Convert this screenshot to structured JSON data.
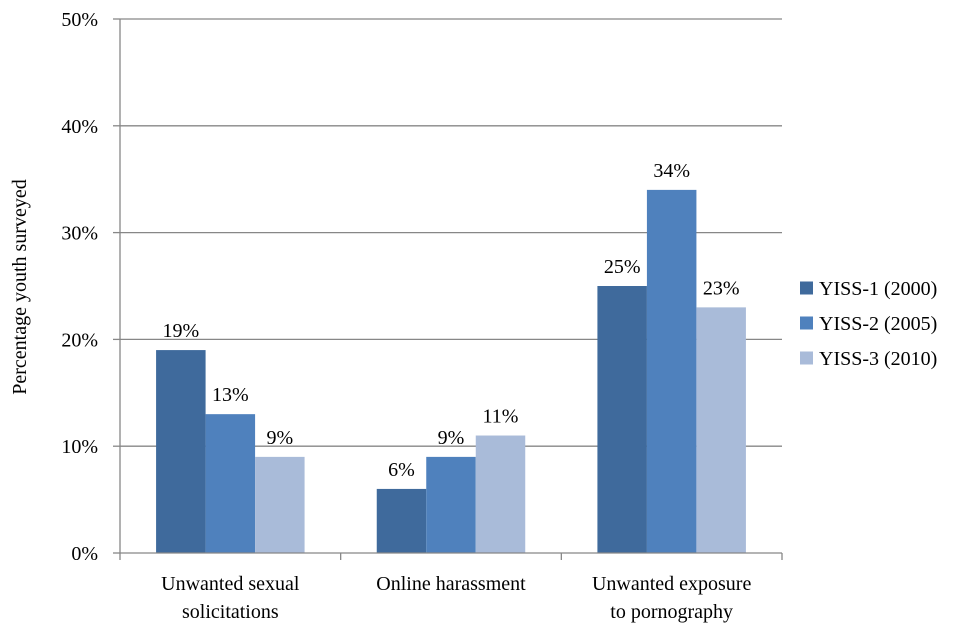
{
  "chart_data": {
    "type": "bar",
    "title": "",
    "xlabel": "",
    "ylabel": "Percentage youth surveyed",
    "ylim": [
      0,
      50
    ],
    "yticks": [
      "0%",
      "10%",
      "20%",
      "30%",
      "40%",
      "50%"
    ],
    "ytick_values": [
      0,
      10,
      20,
      30,
      40,
      50
    ],
    "grid": true,
    "legend_position": "right",
    "categories": [
      [
        "Unwanted sexual",
        "solicitations"
      ],
      [
        "Online harassment"
      ],
      [
        "Unwanted exposure",
        "to pornography"
      ]
    ],
    "series": [
      {
        "name": "YISS-1 (2000)",
        "color": "#3f6a9c",
        "values": [
          19,
          6,
          25
        ],
        "labels": [
          "19%",
          "6%",
          "25%"
        ]
      },
      {
        "name": "YISS-2 (2005)",
        "color": "#4f81bd",
        "values": [
          13,
          9,
          34
        ],
        "labels": [
          "13%",
          "9%",
          "34%"
        ]
      },
      {
        "name": "YISS-3 (2010)",
        "color": "#a9bbd9",
        "values": [
          9,
          11,
          23
        ],
        "labels": [
          "9%",
          "11%",
          "23%"
        ]
      }
    ]
  }
}
